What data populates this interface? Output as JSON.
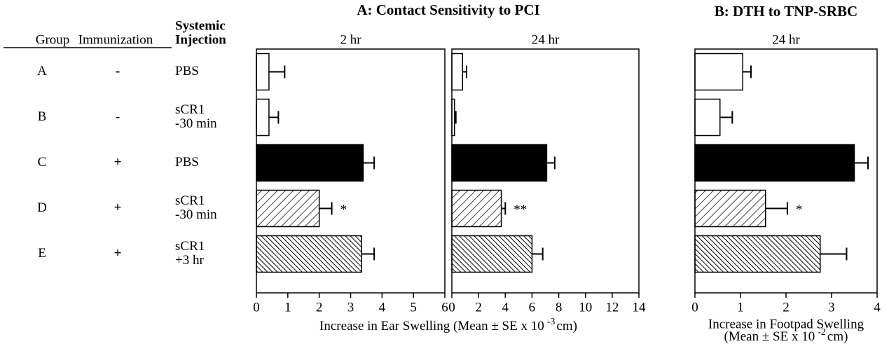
{
  "table": {
    "header": {
      "group": "Group",
      "immunization": "Immunization",
      "injection": [
        "Systemic",
        "Injection"
      ]
    },
    "rows": [
      {
        "group": "A",
        "immunization": "-",
        "injection": [
          "PBS"
        ]
      },
      {
        "group": "B",
        "immunization": "-",
        "injection": [
          "sCR1",
          "-30 min"
        ]
      },
      {
        "group": "C",
        "immunization": "+",
        "injection": [
          "PBS"
        ]
      },
      {
        "group": "D",
        "immunization": "+",
        "injection": [
          "sCR1",
          "-30 min"
        ]
      },
      {
        "group": "E",
        "immunization": "+",
        "injection": [
          "sCR1",
          "+3 hr"
        ]
      }
    ]
  },
  "chart_data": [
    {
      "type": "bar",
      "orientation": "horizontal",
      "title": "A: Contact Sensitivity to PCI",
      "subtitle": "2 hr",
      "xlabel": {
        "text": "Increase in Ear Swelling (Mean ± SE x 10",
        "superscript": "-3",
        "unit": "cm)"
      },
      "values": [
        0.4,
        0.4,
        3.4,
        2.0,
        3.35
      ],
      "errors": [
        0.5,
        0.3,
        0.35,
        0.4,
        0.4
      ],
      "fills": [
        "white",
        "white",
        "black",
        "hatch",
        "dense-hatch"
      ],
      "value_annotations": [
        null,
        null,
        null,
        "*",
        null
      ],
      "xlim": [
        0,
        6
      ],
      "xticks": [
        0,
        1,
        2,
        3,
        4,
        5,
        6
      ]
    },
    {
      "type": "bar",
      "orientation": "horizontal",
      "subtitle": "24 hr",
      "values": [
        0.8,
        0.2,
        7.1,
        3.7,
        6.0
      ],
      "errors": [
        0.3,
        0.1,
        0.6,
        0.3,
        0.8
      ],
      "fills": [
        "white",
        "white",
        "black",
        "hatch",
        "dense-hatch"
      ],
      "value_annotations": [
        null,
        null,
        null,
        "**",
        null
      ],
      "xlim": [
        0,
        14
      ],
      "xticks": [
        0,
        2,
        4,
        6,
        8,
        10,
        12,
        14
      ]
    },
    {
      "type": "bar",
      "orientation": "horizontal",
      "title": "B: DTH to TNP-SRBC",
      "subtitle": "24 hr",
      "xlabel": {
        "text": "Increase in Footpad Swelling",
        "text2": "(Mean ± SE x 10",
        "superscript": "-2",
        "unit": "cm)"
      },
      "values": [
        1.05,
        0.55,
        3.5,
        1.55,
        2.75
      ],
      "errors": [
        0.18,
        0.27,
        0.3,
        0.48,
        0.58
      ],
      "fills": [
        "white",
        "white",
        "black",
        "hatch",
        "dense-hatch"
      ],
      "value_annotations": [
        null,
        null,
        null,
        "*",
        null
      ],
      "xlim": [
        0,
        4
      ],
      "xticks": [
        0,
        1,
        2,
        3,
        4
      ]
    }
  ]
}
